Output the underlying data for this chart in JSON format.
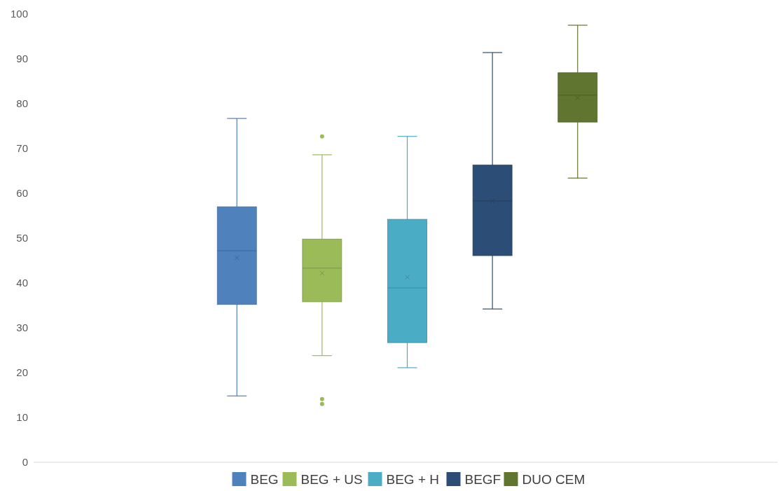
{
  "chart_data": {
    "type": "box",
    "categories": [
      null
    ],
    "ylim": [
      0,
      100
    ],
    "yticks": [
      0,
      10,
      20,
      30,
      40,
      50,
      60,
      70,
      80,
      90,
      100
    ],
    "legend": "bottom",
    "series": [
      {
        "name": "BEG",
        "color": "#4f81bd",
        "boxes": [
          {
            "low": 14.8,
            "q1": 35.2,
            "median": 47.2,
            "q3": 57.0,
            "high": 76.7,
            "mean": 45.6
          }
        ]
      },
      {
        "name": "BEG + US",
        "color": "#9bbb59",
        "boxes": [
          {
            "low": 23.8,
            "q1": 35.8,
            "median": 43.3,
            "q3": 49.8,
            "high": 68.6,
            "mean": 42.2,
            "outliers": [
              72.7,
              14.1,
              13.0
            ]
          }
        ]
      },
      {
        "name": "BEG + H",
        "color": "#4bacc6",
        "boxes": [
          {
            "low": 21.1,
            "q1": 26.7,
            "median": 38.9,
            "q3": 54.2,
            "high": 72.7,
            "mean": 41.3
          }
        ]
      },
      {
        "name": "BEGF",
        "color": "#2c4d75",
        "boxes": [
          {
            "low": 34.2,
            "q1": 46.1,
            "median": 58.3,
            "q3": 66.3,
            "high": 91.4,
            "mean": 58.3
          }
        ]
      },
      {
        "name": "DUO CEM",
        "color": "#5f7530",
        "boxes": [
          {
            "low": 63.4,
            "q1": 75.9,
            "median": 81.9,
            "q3": 86.9,
            "high": 97.5,
            "mean": 81.3
          }
        ]
      }
    ]
  }
}
